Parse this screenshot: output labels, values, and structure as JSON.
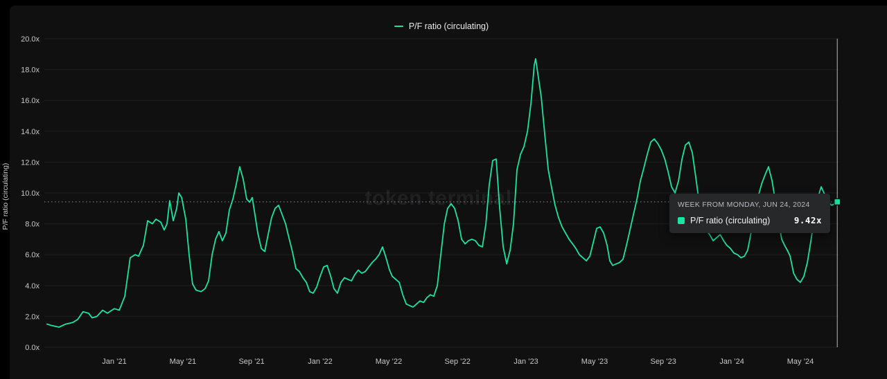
{
  "colors": {
    "accent": "#1be4a2",
    "grid": "#1e1f20",
    "axis_text": "#c8c8c8",
    "crosshair": "#d3d5d6",
    "dotted_ref": "#8a8f92"
  },
  "legend": {
    "label": "P/F ratio (circulating)"
  },
  "y_axis": {
    "title": "P/F ratio (circulating)",
    "ticks": [
      {
        "value": 0,
        "label": "0.0x"
      },
      {
        "value": 2,
        "label": "2.0x"
      },
      {
        "value": 4,
        "label": "4.0x"
      },
      {
        "value": 6,
        "label": "6.0x"
      },
      {
        "value": 8,
        "label": "8.0x"
      },
      {
        "value": 10,
        "label": "10.0x"
      },
      {
        "value": 12,
        "label": "12.0x"
      },
      {
        "value": 14,
        "label": "14.0x"
      },
      {
        "value": 16,
        "label": "16.0x"
      },
      {
        "value": 18,
        "label": "18.0x"
      },
      {
        "value": 20,
        "label": "20.0x"
      }
    ]
  },
  "x_axis": {
    "ticks": [
      {
        "t": 2021.0,
        "label": "Jan ’21"
      },
      {
        "t": 2021.333,
        "label": "May ’21"
      },
      {
        "t": 2021.667,
        "label": "Sep ’21"
      },
      {
        "t": 2022.0,
        "label": "Jan ’22"
      },
      {
        "t": 2022.333,
        "label": "May ’22"
      },
      {
        "t": 2022.667,
        "label": "Sep ’22"
      },
      {
        "t": 2023.0,
        "label": "Jan ’23"
      },
      {
        "t": 2023.333,
        "label": "May ’23"
      },
      {
        "t": 2023.667,
        "label": "Sep ’23"
      },
      {
        "t": 2024.0,
        "label": "Jan ’24"
      },
      {
        "t": 2024.333,
        "label": "May ’24"
      }
    ]
  },
  "watermark": "token terminal.",
  "tooltip": {
    "title": "WEEK FROM MONDAY, JUN 24, 2024",
    "series": "P/F ratio (circulating)",
    "value": "9.42x"
  },
  "chart_data": {
    "type": "line",
    "title": "P/F ratio (circulating)",
    "xlabel": "",
    "ylabel": "P/F ratio (circulating)",
    "x_unit": "decimal_year",
    "xlim": [
      2020.66,
      2024.518
    ],
    "ylim": [
      0,
      20
    ],
    "grid": true,
    "legend_position": "top-center",
    "highlight": {
      "t": 2024.512,
      "value": 9.42,
      "date_label": "WEEK FROM MONDAY, JUN 24, 2024"
    },
    "series": [
      {
        "name": "P/F ratio (circulating)",
        "color": "#1be4a2",
        "points": [
          [
            2020.673,
            1.5
          ],
          [
            2020.697,
            1.4
          ],
          [
            2020.731,
            1.3
          ],
          [
            2020.764,
            1.5
          ],
          [
            2020.798,
            1.6
          ],
          [
            2020.822,
            1.8
          ],
          [
            2020.848,
            2.3
          ],
          [
            2020.875,
            2.2
          ],
          [
            2020.892,
            1.9
          ],
          [
            2020.916,
            2.0
          ],
          [
            2020.943,
            2.4
          ],
          [
            2020.966,
            2.2
          ],
          [
            2021.0,
            2.5
          ],
          [
            2021.024,
            2.4
          ],
          [
            2021.051,
            3.3
          ],
          [
            2021.077,
            5.8
          ],
          [
            2021.101,
            6.0
          ],
          [
            2021.118,
            5.9
          ],
          [
            2021.141,
            6.6
          ],
          [
            2021.162,
            8.2
          ],
          [
            2021.185,
            8.0
          ],
          [
            2021.202,
            8.3
          ],
          [
            2021.226,
            8.1
          ],
          [
            2021.242,
            7.6
          ],
          [
            2021.256,
            8.0
          ],
          [
            2021.269,
            9.5
          ],
          [
            2021.286,
            8.2
          ],
          [
            2021.303,
            9.0
          ],
          [
            2021.313,
            10.0
          ],
          [
            2021.327,
            9.7
          ],
          [
            2021.347,
            8.3
          ],
          [
            2021.364,
            5.9
          ],
          [
            2021.38,
            4.1
          ],
          [
            2021.397,
            3.7
          ],
          [
            2021.421,
            3.6
          ],
          [
            2021.441,
            3.8
          ],
          [
            2021.458,
            4.3
          ],
          [
            2021.475,
            6.0
          ],
          [
            2021.492,
            7.0
          ],
          [
            2021.508,
            7.5
          ],
          [
            2021.525,
            6.9
          ],
          [
            2021.542,
            7.4
          ],
          [
            2021.559,
            8.9
          ],
          [
            2021.576,
            9.6
          ],
          [
            2021.593,
            10.6
          ],
          [
            2021.609,
            11.7
          ],
          [
            2021.626,
            10.9
          ],
          [
            2021.643,
            9.6
          ],
          [
            2021.657,
            9.4
          ],
          [
            2021.67,
            9.7
          ],
          [
            2021.683,
            8.6
          ],
          [
            2021.697,
            7.4
          ],
          [
            2021.714,
            6.4
          ],
          [
            2021.731,
            6.2
          ],
          [
            2021.747,
            7.3
          ],
          [
            2021.764,
            8.4
          ],
          [
            2021.781,
            9.0
          ],
          [
            2021.798,
            9.2
          ],
          [
            2021.815,
            8.6
          ],
          [
            2021.832,
            8.0
          ],
          [
            2021.848,
            7.1
          ],
          [
            2021.865,
            6.2
          ],
          [
            2021.882,
            5.1
          ],
          [
            2021.899,
            4.9
          ],
          [
            2021.916,
            4.5
          ],
          [
            2021.933,
            4.2
          ],
          [
            2021.949,
            3.6
          ],
          [
            2021.966,
            3.5
          ],
          [
            2021.983,
            3.9
          ],
          [
            2022.0,
            4.6
          ],
          [
            2022.017,
            5.2
          ],
          [
            2022.034,
            5.3
          ],
          [
            2022.051,
            4.6
          ],
          [
            2022.067,
            3.8
          ],
          [
            2022.084,
            3.5
          ],
          [
            2022.101,
            4.2
          ],
          [
            2022.118,
            4.5
          ],
          [
            2022.135,
            4.4
          ],
          [
            2022.152,
            4.3
          ],
          [
            2022.168,
            4.7
          ],
          [
            2022.185,
            5.0
          ],
          [
            2022.202,
            4.8
          ],
          [
            2022.219,
            4.9
          ],
          [
            2022.236,
            5.2
          ],
          [
            2022.253,
            5.5
          ],
          [
            2022.269,
            5.7
          ],
          [
            2022.286,
            6.0
          ],
          [
            2022.303,
            6.5
          ],
          [
            2022.32,
            5.8
          ],
          [
            2022.337,
            5.0
          ],
          [
            2022.35,
            4.6
          ],
          [
            2022.367,
            4.4
          ],
          [
            2022.384,
            4.2
          ],
          [
            2022.401,
            3.4
          ],
          [
            2022.418,
            2.8
          ],
          [
            2022.434,
            2.7
          ],
          [
            2022.451,
            2.6
          ],
          [
            2022.468,
            2.8
          ],
          [
            2022.485,
            3.0
          ],
          [
            2022.502,
            2.9
          ],
          [
            2022.518,
            3.2
          ],
          [
            2022.535,
            3.4
          ],
          [
            2022.552,
            3.3
          ],
          [
            2022.569,
            4.0
          ],
          [
            2022.586,
            6.0
          ],
          [
            2022.603,
            8.0
          ],
          [
            2022.619,
            9.0
          ],
          [
            2022.636,
            9.3
          ],
          [
            2022.653,
            9.0
          ],
          [
            2022.67,
            8.2
          ],
          [
            2022.687,
            7.0
          ],
          [
            2022.704,
            6.7
          ],
          [
            2022.72,
            6.9
          ],
          [
            2022.737,
            7.0
          ],
          [
            2022.754,
            6.9
          ],
          [
            2022.771,
            6.6
          ],
          [
            2022.788,
            6.5
          ],
          [
            2022.805,
            8.0
          ],
          [
            2022.821,
            10.5
          ],
          [
            2022.838,
            12.1
          ],
          [
            2022.855,
            12.2
          ],
          [
            2022.872,
            9.0
          ],
          [
            2022.889,
            6.5
          ],
          [
            2022.906,
            5.4
          ],
          [
            2022.923,
            6.3
          ],
          [
            2022.939,
            8.0
          ],
          [
            2022.956,
            11.5
          ],
          [
            2022.973,
            12.5
          ],
          [
            2022.99,
            13.0
          ],
          [
            2023.007,
            14.0
          ],
          [
            2023.024,
            15.8
          ],
          [
            2023.04,
            18.3
          ],
          [
            2023.047,
            18.7
          ],
          [
            2023.061,
            17.4
          ],
          [
            2023.074,
            16.2
          ],
          [
            2023.091,
            13.8
          ],
          [
            2023.108,
            11.5
          ],
          [
            2023.125,
            10.3
          ],
          [
            2023.141,
            9.2
          ],
          [
            2023.158,
            8.4
          ],
          [
            2023.175,
            7.8
          ],
          [
            2023.192,
            7.4
          ],
          [
            2023.209,
            7.0
          ],
          [
            2023.226,
            6.7
          ],
          [
            2023.242,
            6.4
          ],
          [
            2023.259,
            6.0
          ],
          [
            2023.276,
            5.8
          ],
          [
            2023.293,
            5.6
          ],
          [
            2023.31,
            5.9
          ],
          [
            2023.327,
            6.8
          ],
          [
            2023.343,
            7.7
          ],
          [
            2023.36,
            7.8
          ],
          [
            2023.377,
            7.4
          ],
          [
            2023.394,
            6.6
          ],
          [
            2023.407,
            5.6
          ],
          [
            2023.421,
            5.3
          ],
          [
            2023.438,
            5.4
          ],
          [
            2023.455,
            5.5
          ],
          [
            2023.471,
            5.7
          ],
          [
            2023.488,
            6.6
          ],
          [
            2023.505,
            7.6
          ],
          [
            2023.522,
            8.6
          ],
          [
            2023.539,
            9.6
          ],
          [
            2023.556,
            10.8
          ],
          [
            2023.572,
            11.6
          ],
          [
            2023.589,
            12.5
          ],
          [
            2023.606,
            13.3
          ],
          [
            2023.623,
            13.5
          ],
          [
            2023.64,
            13.2
          ],
          [
            2023.657,
            12.8
          ],
          [
            2023.674,
            12.2
          ],
          [
            2023.69,
            11.4
          ],
          [
            2023.707,
            10.4
          ],
          [
            2023.724,
            10.0
          ],
          [
            2023.741,
            10.8
          ],
          [
            2023.758,
            12.2
          ],
          [
            2023.774,
            13.1
          ],
          [
            2023.791,
            13.3
          ],
          [
            2023.808,
            12.6
          ],
          [
            2023.825,
            11.0
          ],
          [
            2023.842,
            9.3
          ],
          [
            2023.859,
            8.3
          ],
          [
            2023.875,
            7.6
          ],
          [
            2023.892,
            7.3
          ],
          [
            2023.909,
            6.9
          ],
          [
            2023.926,
            7.1
          ],
          [
            2023.943,
            7.3
          ],
          [
            2023.96,
            6.9
          ],
          [
            2023.976,
            6.6
          ],
          [
            2023.993,
            6.4
          ],
          [
            2024.01,
            6.1
          ],
          [
            2024.027,
            6.0
          ],
          [
            2024.044,
            5.8
          ],
          [
            2024.061,
            5.9
          ],
          [
            2024.077,
            6.3
          ],
          [
            2024.094,
            7.5
          ],
          [
            2024.111,
            8.8
          ],
          [
            2024.128,
            9.8
          ],
          [
            2024.145,
            10.6
          ],
          [
            2024.162,
            11.2
          ],
          [
            2024.178,
            11.7
          ],
          [
            2024.195,
            10.8
          ],
          [
            2024.212,
            9.4
          ],
          [
            2024.229,
            8.0
          ],
          [
            2024.242,
            7.0
          ],
          [
            2024.256,
            6.6
          ],
          [
            2024.269,
            6.3
          ],
          [
            2024.283,
            5.9
          ],
          [
            2024.3,
            4.8
          ],
          [
            2024.316,
            4.4
          ],
          [
            2024.333,
            4.2
          ],
          [
            2024.35,
            4.6
          ],
          [
            2024.367,
            5.5
          ],
          [
            2024.384,
            6.9
          ],
          [
            2024.401,
            8.4
          ],
          [
            2024.418,
            9.7
          ],
          [
            2024.434,
            10.4
          ],
          [
            2024.451,
            9.9
          ],
          [
            2024.468,
            9.4
          ],
          [
            2024.485,
            9.2
          ],
          [
            2024.498,
            9.3
          ],
          [
            2024.512,
            9.42
          ]
        ]
      }
    ]
  }
}
